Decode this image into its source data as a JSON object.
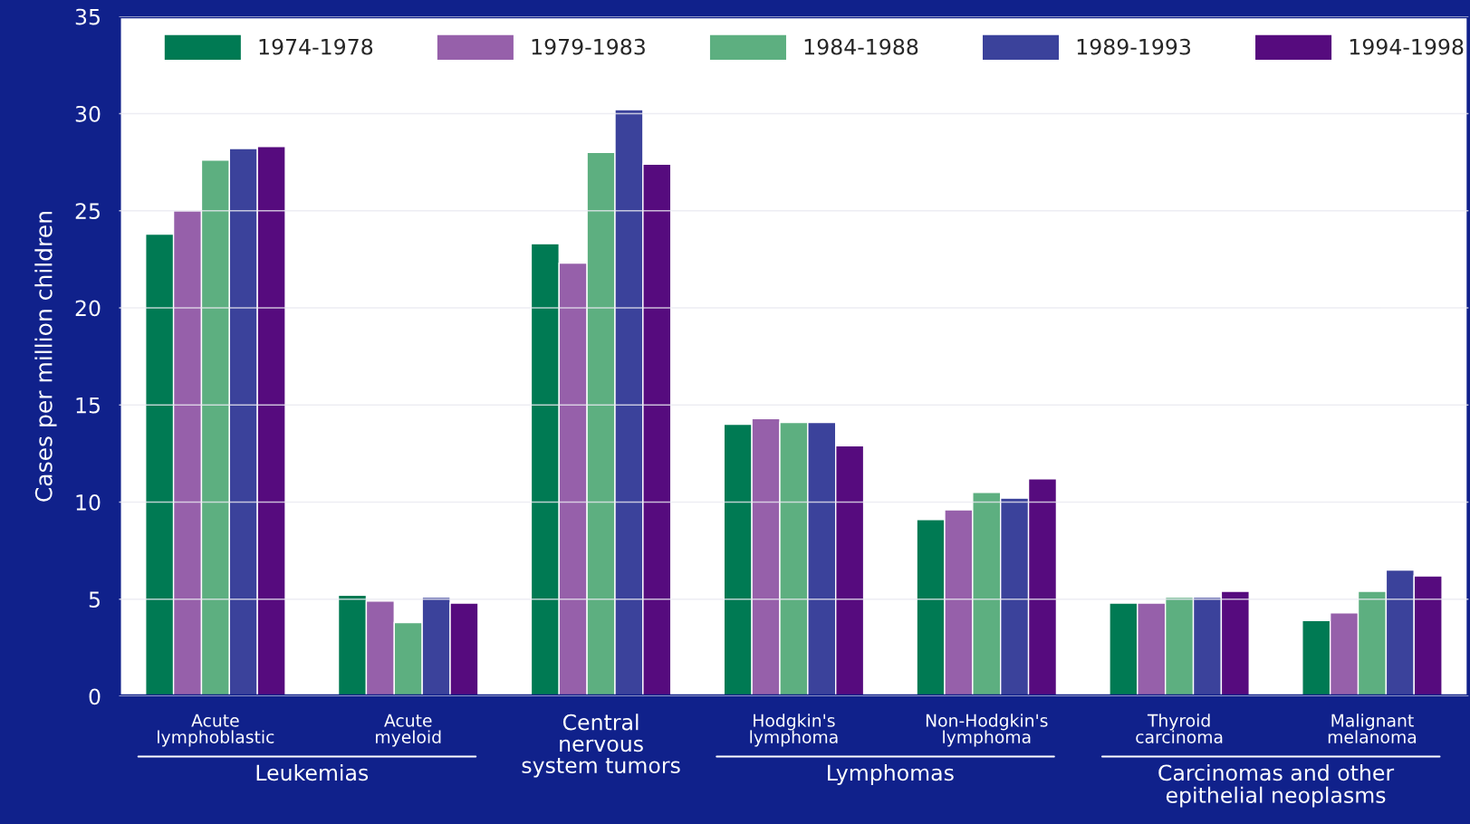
{
  "chart_data": {
    "type": "bar",
    "ylabel": "Cases per million children",
    "categories": [
      "Acute\nlymphoblastic",
      "Acute\nmyeloid",
      "Central\nnervous\nsystem tumors",
      "Hodgkin's\nlymphoma",
      "Non-Hodgkin's\nlymphoma",
      "Thyroid\ncarcinoma",
      "Malignant\nmelanoma"
    ],
    "series": [
      {
        "name": "1974-1978",
        "color": "#007a53",
        "values": [
          23.8,
          5.2,
          23.3,
          14.0,
          9.1,
          4.8,
          3.9
        ]
      },
      {
        "name": "1979-1983",
        "color": "#9660aa",
        "values": [
          25.0,
          4.9,
          22.3,
          14.3,
          9.6,
          4.8,
          4.3
        ]
      },
      {
        "name": "1984-1988",
        "color": "#5daf80",
        "values": [
          27.6,
          3.8,
          28.0,
          14.1,
          10.5,
          5.1,
          5.4
        ]
      },
      {
        "name": "1989-1993",
        "color": "#3b429b",
        "values": [
          28.2,
          5.1,
          30.2,
          14.1,
          10.2,
          5.1,
          6.5
        ]
      },
      {
        "name": "1994-1998",
        "color": "#560b7e",
        "values": [
          28.3,
          4.8,
          27.4,
          12.9,
          11.2,
          5.4,
          6.2
        ]
      }
    ],
    "ylim": [
      0,
      35
    ],
    "yticks": [
      0,
      5,
      10,
      15,
      20,
      25,
      30,
      35
    ],
    "grid": "y",
    "legend": "top left",
    "annotations": [
      "Leukemias",
      "Lymphomas",
      "Carcinomas and other\nepithelial neoplasms"
    ]
  }
}
